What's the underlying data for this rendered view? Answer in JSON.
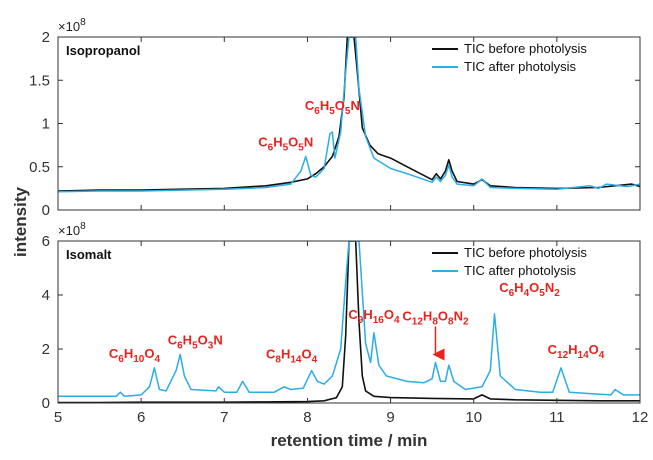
{
  "colors": {
    "before": "#111111",
    "after": "#29aee6",
    "annotation": "#e8231d",
    "axis": "#333333"
  },
  "chart_data": [
    {
      "type": "line",
      "panel": "Isopropanol",
      "title": "Isopropanol",
      "xlabel": "retention time / min",
      "ylabel": "intensity",
      "y_multiplier": "×10",
      "y_multiplier_exp": "8",
      "xlim": [
        5,
        12
      ],
      "ylim": [
        0,
        2
      ],
      "xticks": [
        "5",
        "6",
        "7",
        "8",
        "9",
        "10",
        "11",
        "12"
      ],
      "yticks": [
        "0",
        "0.5",
        "1",
        "1.5",
        "2"
      ],
      "legend": {
        "placement": "top-right",
        "entries": [
          "TIC before photolysis",
          "TIC after photolysis"
        ]
      },
      "series": [
        {
          "name": "TIC before photolysis",
          "color": "#111111",
          "x": [
            5.0,
            5.5,
            6.0,
            6.5,
            7.0,
            7.5,
            7.8,
            8.0,
            8.1,
            8.2,
            8.3,
            8.38,
            8.44,
            8.48,
            8.52,
            8.56,
            8.6,
            8.66,
            8.75,
            8.85,
            9.0,
            9.2,
            9.5,
            9.55,
            9.6,
            9.66,
            9.7,
            9.74,
            9.8,
            10.0,
            10.1,
            10.2,
            10.5,
            11.0,
            11.5,
            11.9,
            12.0
          ],
          "y": [
            0.22,
            0.23,
            0.23,
            0.24,
            0.25,
            0.28,
            0.32,
            0.36,
            0.42,
            0.5,
            0.62,
            0.85,
            1.3,
            2.0,
            2.0,
            2.0,
            1.6,
            0.95,
            0.75,
            0.65,
            0.6,
            0.5,
            0.35,
            0.42,
            0.36,
            0.45,
            0.58,
            0.45,
            0.33,
            0.3,
            0.35,
            0.28,
            0.26,
            0.25,
            0.26,
            0.3,
            0.27
          ]
        },
        {
          "name": "TIC after photolysis",
          "color": "#29aee6",
          "x": [
            5.0,
            5.5,
            6.0,
            6.5,
            7.0,
            7.5,
            7.8,
            7.92,
            7.98,
            8.04,
            8.1,
            8.2,
            8.27,
            8.3,
            8.33,
            8.4,
            8.46,
            8.5,
            8.54,
            8.58,
            8.62,
            8.7,
            8.8,
            9.0,
            9.2,
            9.5,
            9.55,
            9.6,
            9.66,
            9.7,
            9.74,
            9.8,
            10.0,
            10.1,
            10.2,
            10.5,
            11.0,
            11.4,
            11.5,
            11.6,
            11.85,
            12.0
          ],
          "y": [
            0.21,
            0.22,
            0.22,
            0.23,
            0.24,
            0.26,
            0.3,
            0.45,
            0.62,
            0.4,
            0.38,
            0.48,
            0.88,
            0.9,
            0.6,
            0.9,
            1.6,
            2.0,
            2.0,
            2.0,
            1.4,
            0.85,
            0.6,
            0.48,
            0.42,
            0.32,
            0.38,
            0.33,
            0.4,
            0.52,
            0.38,
            0.3,
            0.28,
            0.36,
            0.26,
            0.25,
            0.24,
            0.28,
            0.25,
            0.3,
            0.27,
            0.3
          ]
        }
      ],
      "annotations": [
        {
          "text": "C₆H₅O₅N",
          "x": 8.3,
          "y": 0.9,
          "color": "#e8231d"
        },
        {
          "text": "C₆H₅O₅N",
          "x": 7.98,
          "y": 0.62,
          "color": "#e8231d"
        }
      ]
    },
    {
      "type": "line",
      "panel": "Isomalt",
      "title": "Isomalt",
      "xlabel": "retention time / min",
      "ylabel": "intensity",
      "y_multiplier": "×10",
      "y_multiplier_exp": "8",
      "xlim": [
        5,
        12
      ],
      "ylim": [
        0,
        6
      ],
      "xticks": [
        "5",
        "6",
        "7",
        "8",
        "9",
        "10",
        "11",
        "12"
      ],
      "yticks": [
        "0",
        "2",
        "4",
        "6"
      ],
      "legend": {
        "placement": "top-right",
        "entries": [
          "TIC before photolysis",
          "TIC after photolysis"
        ]
      },
      "series": [
        {
          "name": "TIC before photolysis",
          "color": "#111111",
          "x": [
            5.0,
            5.5,
            6.0,
            6.5,
            7.0,
            7.5,
            8.0,
            8.2,
            8.35,
            8.42,
            8.46,
            8.5,
            8.54,
            8.58,
            8.62,
            8.66,
            8.7,
            8.8,
            9.0,
            9.5,
            10.0,
            10.1,
            10.2,
            10.5,
            11.0,
            11.5,
            12.0
          ],
          "y": [
            0.02,
            0.02,
            0.03,
            0.03,
            0.03,
            0.04,
            0.05,
            0.08,
            0.2,
            0.6,
            2.5,
            6.0,
            6.0,
            6.0,
            3.0,
            1.0,
            0.45,
            0.25,
            0.2,
            0.17,
            0.15,
            0.3,
            0.15,
            0.12,
            0.1,
            0.08,
            0.08
          ]
        },
        {
          "name": "TIC after photolysis",
          "color": "#29aee6",
          "x": [
            5.0,
            5.5,
            5.7,
            5.75,
            5.8,
            6.0,
            6.1,
            6.16,
            6.22,
            6.3,
            6.42,
            6.47,
            6.52,
            6.6,
            6.9,
            6.93,
            7.0,
            7.15,
            7.22,
            7.3,
            7.6,
            7.72,
            7.8,
            7.95,
            8.05,
            8.12,
            8.2,
            8.3,
            8.4,
            8.46,
            8.5,
            8.56,
            8.62,
            8.7,
            8.76,
            8.8,
            8.86,
            8.95,
            9.2,
            9.4,
            9.5,
            9.54,
            9.6,
            9.66,
            9.7,
            9.76,
            9.9,
            10.1,
            10.2,
            10.25,
            10.32,
            10.5,
            10.8,
            10.95,
            11.05,
            11.15,
            11.4,
            11.65,
            11.7,
            11.8,
            12.0
          ],
          "y": [
            0.25,
            0.25,
            0.25,
            0.4,
            0.25,
            0.3,
            0.6,
            1.3,
            0.5,
            0.45,
            1.2,
            1.8,
            1.0,
            0.5,
            0.45,
            0.6,
            0.4,
            0.4,
            0.8,
            0.4,
            0.4,
            0.6,
            0.5,
            0.55,
            1.2,
            0.8,
            0.7,
            1.0,
            2.0,
            4.5,
            6.0,
            6.0,
            6.0,
            2.2,
            1.5,
            2.6,
            1.4,
            1.0,
            0.8,
            0.75,
            0.9,
            1.5,
            0.8,
            0.8,
            1.4,
            0.8,
            0.5,
            0.6,
            1.2,
            3.3,
            1.0,
            0.5,
            0.4,
            0.4,
            1.3,
            0.4,
            0.35,
            0.3,
            0.5,
            0.3,
            0.3
          ]
        }
      ],
      "annotations": [
        {
          "text": "C₆H₁₀O₄",
          "x": 6.16,
          "y": 1.3,
          "color": "#e8231d"
        },
        {
          "text": "C₆H₅O₃N",
          "x": 6.47,
          "y": 1.8,
          "color": "#e8231d"
        },
        {
          "text": "C₈H₁₄O₄",
          "x": 8.05,
          "y": 1.2,
          "color": "#e8231d"
        },
        {
          "text": "C₉H₁₆O₄",
          "x": 8.8,
          "y": 2.6,
          "color": "#e8231d"
        },
        {
          "text": "C₁₂H₈O₈N₂",
          "x": 9.54,
          "y": 1.5,
          "color": "#e8231d",
          "arrow": true
        },
        {
          "text": "C₆H₄O₅N₂",
          "x": 10.25,
          "y": 3.3,
          "color": "#e8231d"
        },
        {
          "text": "C₁₂H₁₄O₄",
          "x": 11.05,
          "y": 1.3,
          "color": "#e8231d"
        }
      ]
    }
  ]
}
